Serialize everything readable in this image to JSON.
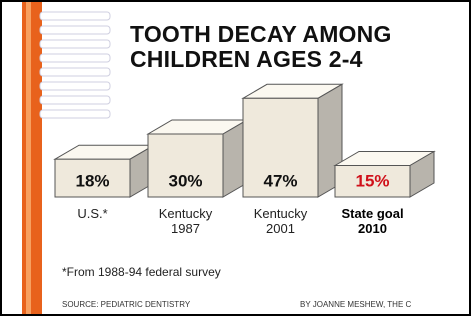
{
  "chart_data": {
    "type": "bar3d",
    "title": "TOOTH DECAY AMONG CHILDREN AGES 2-4",
    "categories": [
      "U.S.*",
      "Kentucky 1987",
      "Kentucky 2001",
      "State goal 2010"
    ],
    "values": [
      18,
      30,
      47,
      15
    ],
    "value_labels": [
      "18%",
      "30%",
      "47%",
      "15%"
    ],
    "label_colors": [
      "#111111",
      "#111111",
      "#111111",
      "#d0101a"
    ],
    "category_bold": [
      false,
      false,
      false,
      true
    ],
    "footnote": "*From 1988-94 federal survey",
    "source": "SOURCE: PEDIATRIC DENTISTRY",
    "credit": "BY JOANNE MESHEW, THE C"
  }
}
